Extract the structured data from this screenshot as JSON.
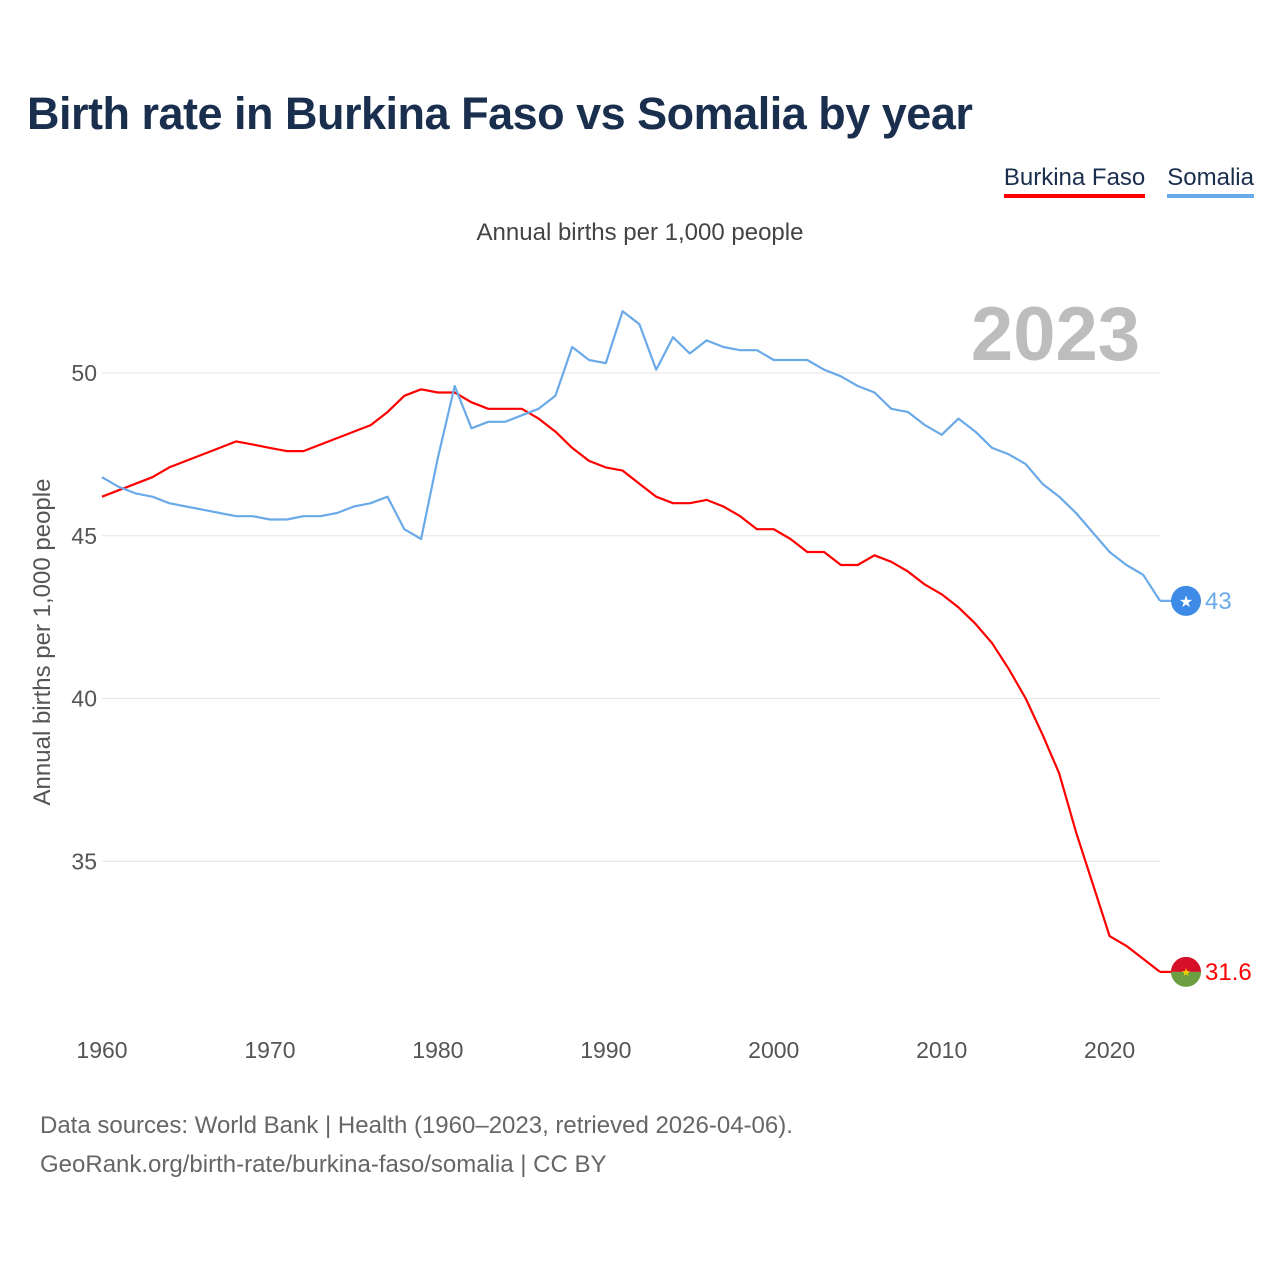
{
  "title": "Birth rate in Burkina Faso vs Somalia by year",
  "legend": [
    {
      "label": "Burkina Faso",
      "color": "#ff0000"
    },
    {
      "label": "Somalia",
      "color": "#6aaae8"
    }
  ],
  "source": {
    "line1": "Data sources: World Bank | Health (1960–2023, retrieved 2026-04-06).",
    "line2": "GeoRank.org/birth-rate/burkina-faso/somalia | CC BY"
  },
  "chart_data": {
    "type": "line",
    "title": "Birth rate in Burkina Faso vs Somalia by year",
    "subtitle": "Annual births per 1,000 people",
    "ylabel": "Annual births per 1,000 people",
    "xlabel": "",
    "year_label": "2023",
    "xlim": [
      1960,
      2023
    ],
    "ylim": [
      31.6,
      52.5
    ],
    "x_ticks": [
      1960,
      1970,
      1980,
      1990,
      2000,
      2010,
      2020
    ],
    "y_ticks": [
      35,
      40,
      45,
      50
    ],
    "grid": true,
    "legend_position": "top-right",
    "x": [
      1960,
      1961,
      1962,
      1963,
      1964,
      1965,
      1966,
      1967,
      1968,
      1969,
      1970,
      1971,
      1972,
      1973,
      1974,
      1975,
      1976,
      1977,
      1978,
      1979,
      1980,
      1981,
      1982,
      1983,
      1984,
      1985,
      1986,
      1987,
      1988,
      1989,
      1990,
      1991,
      1992,
      1993,
      1994,
      1995,
      1996,
      1997,
      1998,
      1999,
      2000,
      2001,
      2002,
      2003,
      2004,
      2005,
      2006,
      2007,
      2008,
      2009,
      2010,
      2011,
      2012,
      2013,
      2014,
      2015,
      2016,
      2017,
      2018,
      2019,
      2020,
      2021,
      2022,
      2023
    ],
    "series": [
      {
        "name": "Burkina Faso",
        "color": "#ff0000",
        "end_label": "31.6",
        "values": [
          46.2,
          46.4,
          46.6,
          46.8,
          47.1,
          47.3,
          47.5,
          47.7,
          47.9,
          47.8,
          47.7,
          47.6,
          47.6,
          47.8,
          48.0,
          48.2,
          48.4,
          48.8,
          49.3,
          49.5,
          49.4,
          49.4,
          49.1,
          48.9,
          48.9,
          48.9,
          48.6,
          48.2,
          47.7,
          47.3,
          47.1,
          47.0,
          46.6,
          46.2,
          46.0,
          46.0,
          46.1,
          45.9,
          45.6,
          45.2,
          45.2,
          44.9,
          44.5,
          44.5,
          44.1,
          44.1,
          44.4,
          44.2,
          43.9,
          43.5,
          43.2,
          42.8,
          42.3,
          41.7,
          40.9,
          40.0,
          38.9,
          37.7,
          35.9,
          34.3,
          32.7,
          32.4,
          32.0,
          31.6
        ]
      },
      {
        "name": "Somalia",
        "color": "#6aaae8",
        "end_label": "43",
        "values": [
          46.8,
          46.5,
          46.3,
          46.2,
          46.0,
          45.9,
          45.8,
          45.7,
          45.6,
          45.6,
          45.5,
          45.5,
          45.6,
          45.6,
          45.7,
          45.9,
          46.0,
          46.2,
          45.2,
          44.9,
          47.4,
          49.6,
          48.3,
          48.5,
          48.5,
          48.7,
          48.9,
          49.3,
          50.8,
          50.4,
          50.3,
          51.9,
          51.5,
          50.1,
          51.1,
          50.6,
          51.0,
          50.8,
          50.7,
          50.7,
          50.4,
          50.4,
          50.4,
          50.1,
          49.9,
          49.6,
          49.4,
          48.9,
          48.8,
          48.4,
          48.1,
          48.6,
          48.2,
          47.7,
          47.5,
          47.2,
          46.6,
          46.2,
          45.7,
          45.1,
          44.5,
          44.1,
          43.8,
          43.0
        ]
      }
    ]
  }
}
